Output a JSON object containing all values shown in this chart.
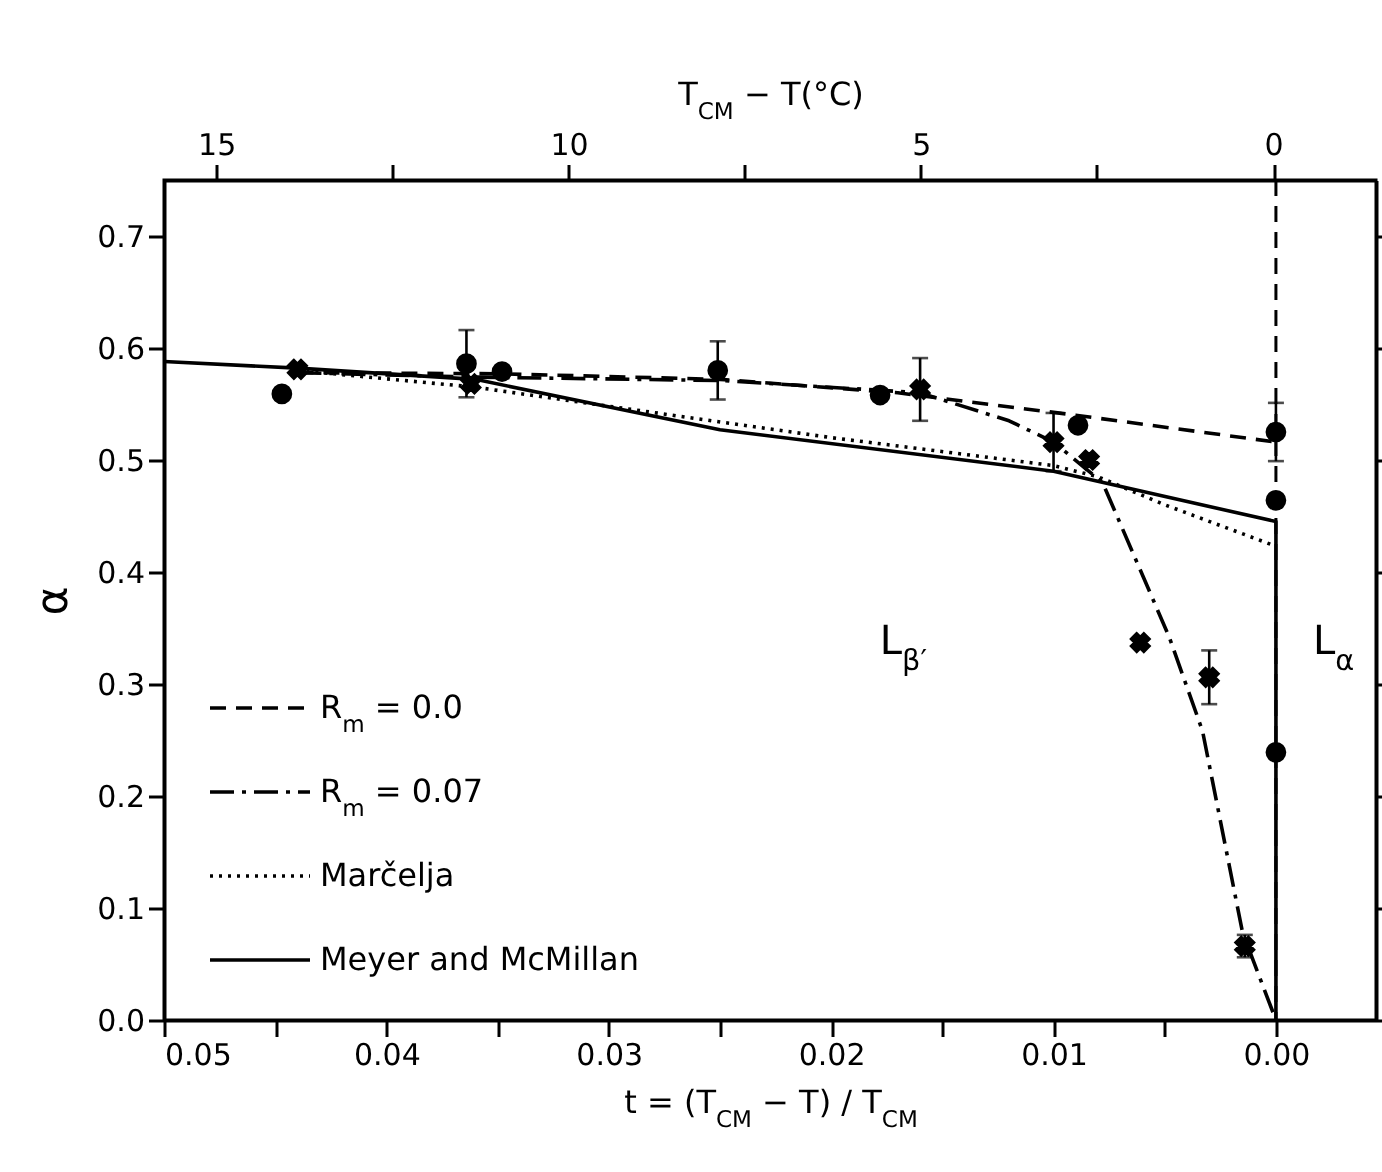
{
  "chart_data": {
    "type": "line",
    "xlabel": "t = (T$_{CM}$ − T) / T$_{CM}$",
    "x2label": "T$_{CM}$ − T(°C)",
    "ylabel": "α",
    "xlim": [
      0.05,
      -0.0045
    ],
    "xticks": [
      {
        "value": 0.05,
        "label": "0.05"
      },
      {
        "value": 0.045,
        "label": null
      },
      {
        "value": 0.04,
        "label": "0.04"
      },
      {
        "value": 0.035,
        "label": null
      },
      {
        "value": 0.03,
        "label": "0.03"
      },
      {
        "value": 0.025,
        "label": null
      },
      {
        "value": 0.02,
        "label": "0.02"
      },
      {
        "value": 0.015,
        "label": null
      },
      {
        "value": 0.01,
        "label": "0.01"
      },
      {
        "value": 0.005,
        "label": null
      },
      {
        "value": 0,
        "label": "0.00"
      }
    ],
    "x2lim": [
      15.74,
      -1.46
    ],
    "x2ticks": [
      15,
      {
        "value": 12.5,
        "label": null
      },
      10,
      {
        "value": 7.5,
        "label": null
      },
      5,
      {
        "value": 2.5,
        "label": null
      },
      0
    ],
    "ylim": [
      0,
      0.75
    ],
    "yticks": [
      {
        "value": 0,
        "label": "0.0"
      },
      {
        "value": 0.1,
        "label": "0.1"
      },
      {
        "value": 0.2,
        "label": "0.2"
      },
      {
        "value": 0.3,
        "label": "0.3"
      },
      {
        "value": 0.4,
        "label": "0.4"
      },
      {
        "value": 0.5,
        "label": "0.5"
      },
      {
        "value": 0.6,
        "label": "0.6"
      },
      {
        "value": 0.7,
        "label": "0.7"
      }
    ],
    "legend": "bottom left",
    "series": [
      {
        "name": "R$_{m}$ = 0.0",
        "type": "line",
        "line_style": "dashed",
        "color": "#000000",
        "x": [
          0.044,
          0.035,
          0.025,
          0.017,
          0.009,
          0.0
        ],
        "values": [
          0.578,
          0.577,
          0.572,
          0.56,
          0.54,
          0.516
        ]
      },
      {
        "type": "scatter",
        "marker": "circle",
        "color": "#000000",
        "x": [
          0.0447,
          0.0364,
          0.0348,
          0.0251,
          0.0178,
          0.0089,
          0.0,
          0.0,
          0.0
        ],
        "values": [
          0.559,
          0.586,
          0.579,
          0.58,
          0.558,
          0.531,
          0.525,
          0.464,
          0.239
        ],
        "errors": [
          null,
          0.03,
          null,
          0.026,
          null,
          null,
          0.026,
          null,
          null
        ]
      },
      {
        "name": "R$_{m}$ = 0.07",
        "type": "line",
        "line_style": "dashdot",
        "color": "#000000",
        "x": [
          0.044,
          0.036,
          0.025,
          0.016,
          0.012,
          0.01,
          0.0078,
          0.0048,
          0.0033,
          0.0015,
          0.0
        ],
        "values": [
          0.578,
          0.574,
          0.571,
          0.56,
          0.535,
          0.516,
          0.48,
          0.342,
          0.258,
          0.078,
          0.0
        ]
      },
      {
        "type": "scatter",
        "marker": "cross",
        "color": "#000000",
        "x": [
          0.044,
          0.0362,
          0.016,
          0.01,
          0.0084,
          0.0061,
          0.003,
          0.0014
        ],
        "values": [
          0.581,
          0.568,
          0.563,
          0.516,
          0.5,
          0.337,
          0.306,
          0.066
        ],
        "errors": [
          null,
          null,
          0.028,
          0.026,
          null,
          null,
          0.024,
          0.01
        ]
      },
      {
        "name": "Marčelja",
        "type": "line",
        "line_style": "dotted",
        "color": "#000000",
        "x": [
          0.044,
          0.036,
          0.03,
          0.02,
          0.01,
          0.008,
          0.005,
          0.0
        ],
        "values": [
          0.58,
          0.565,
          0.548,
          0.52,
          0.495,
          0.485,
          0.46,
          0.423
        ]
      },
      {
        "name": "Meyer and McMillan",
        "type": "line",
        "line_style": "solid",
        "color": "#000000",
        "x": [
          0.05,
          0.044,
          0.036,
          0.025,
          0.01,
          0.0,
          0.0
        ],
        "values": [
          0.588,
          0.582,
          0.572,
          0.527,
          0.49,
          0.445,
          0.0
        ]
      }
    ],
    "ref_lines": [
      {
        "axis": "x",
        "value": 0,
        "line_style": "dashed",
        "color": "#000000"
      }
    ],
    "annotations": [
      "L$_{β′}$",
      "L$_{α}$"
    ]
  }
}
